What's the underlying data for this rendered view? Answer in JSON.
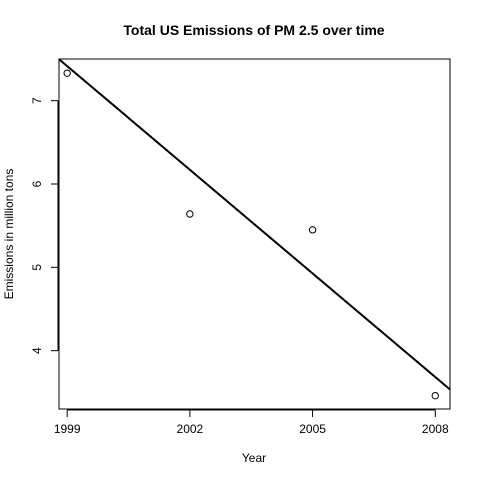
{
  "chart_data": {
    "type": "scatter",
    "title": "Total US Emissions of PM 2.5 over time",
    "xlabel": "Year",
    "ylabel": "Emissions in million tons",
    "x": [
      1999,
      2002,
      2005,
      2008
    ],
    "y": [
      7.33,
      5.64,
      5.45,
      3.46
    ],
    "x_ticks": [
      1999,
      2002,
      2005,
      2008
    ],
    "x_tick_labels": [
      "1999",
      "2002",
      "2005",
      "2008"
    ],
    "y_ticks": [
      4,
      5,
      6,
      7
    ],
    "y_tick_labels": [
      "4",
      "5",
      "6",
      "7"
    ],
    "xlim": [
      1998.8,
      2008.36
    ],
    "ylim": [
      3.3,
      7.5
    ],
    "regression_line": {
      "slope": -0.4146,
      "intercept": 836.2
    },
    "grid": false,
    "marker": "open-circle",
    "line_color": "#000000",
    "point_color": "#000000"
  }
}
